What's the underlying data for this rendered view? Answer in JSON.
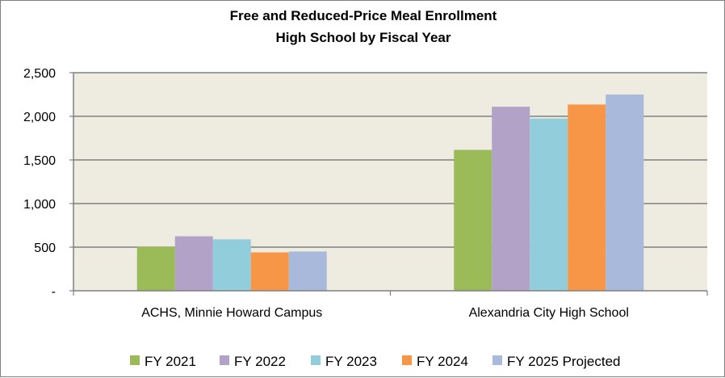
{
  "chart_data": {
    "type": "bar",
    "title": "Free and Reduced-Price Meal Enrollment",
    "subtitle": "High School by Fiscal Year",
    "xlabel": "",
    "ylabel": "",
    "ylim": [
      0,
      2500
    ],
    "yticks": [
      0,
      500,
      1000,
      1500,
      2000,
      2500
    ],
    "ytick_labels": [
      "-",
      "500",
      "1,000",
      "1,500",
      "2,000",
      "2,500"
    ],
    "grid": true,
    "legend_position": "bottom",
    "categories": [
      "ACHS, Minnie Howard Campus",
      "Alexandria City High School"
    ],
    "series": [
      {
        "name": "FY 2021",
        "color": "#9BBB59",
        "values": [
          505,
          1615
        ]
      },
      {
        "name": "FY 2022",
        "color": "#B2A2C7",
        "values": [
          625,
          2110
        ]
      },
      {
        "name": "FY 2023",
        "color": "#92CDDC",
        "values": [
          590,
          1975
        ]
      },
      {
        "name": "FY 2024",
        "color": "#F79646",
        "values": [
          440,
          2135
        ]
      },
      {
        "name": "FY 2025 Projected",
        "color": "#A9B9DB",
        "values": [
          450,
          2250
        ]
      }
    ],
    "plot_background": "#EEEBE1",
    "gridline_color": "#7F7F7F"
  }
}
